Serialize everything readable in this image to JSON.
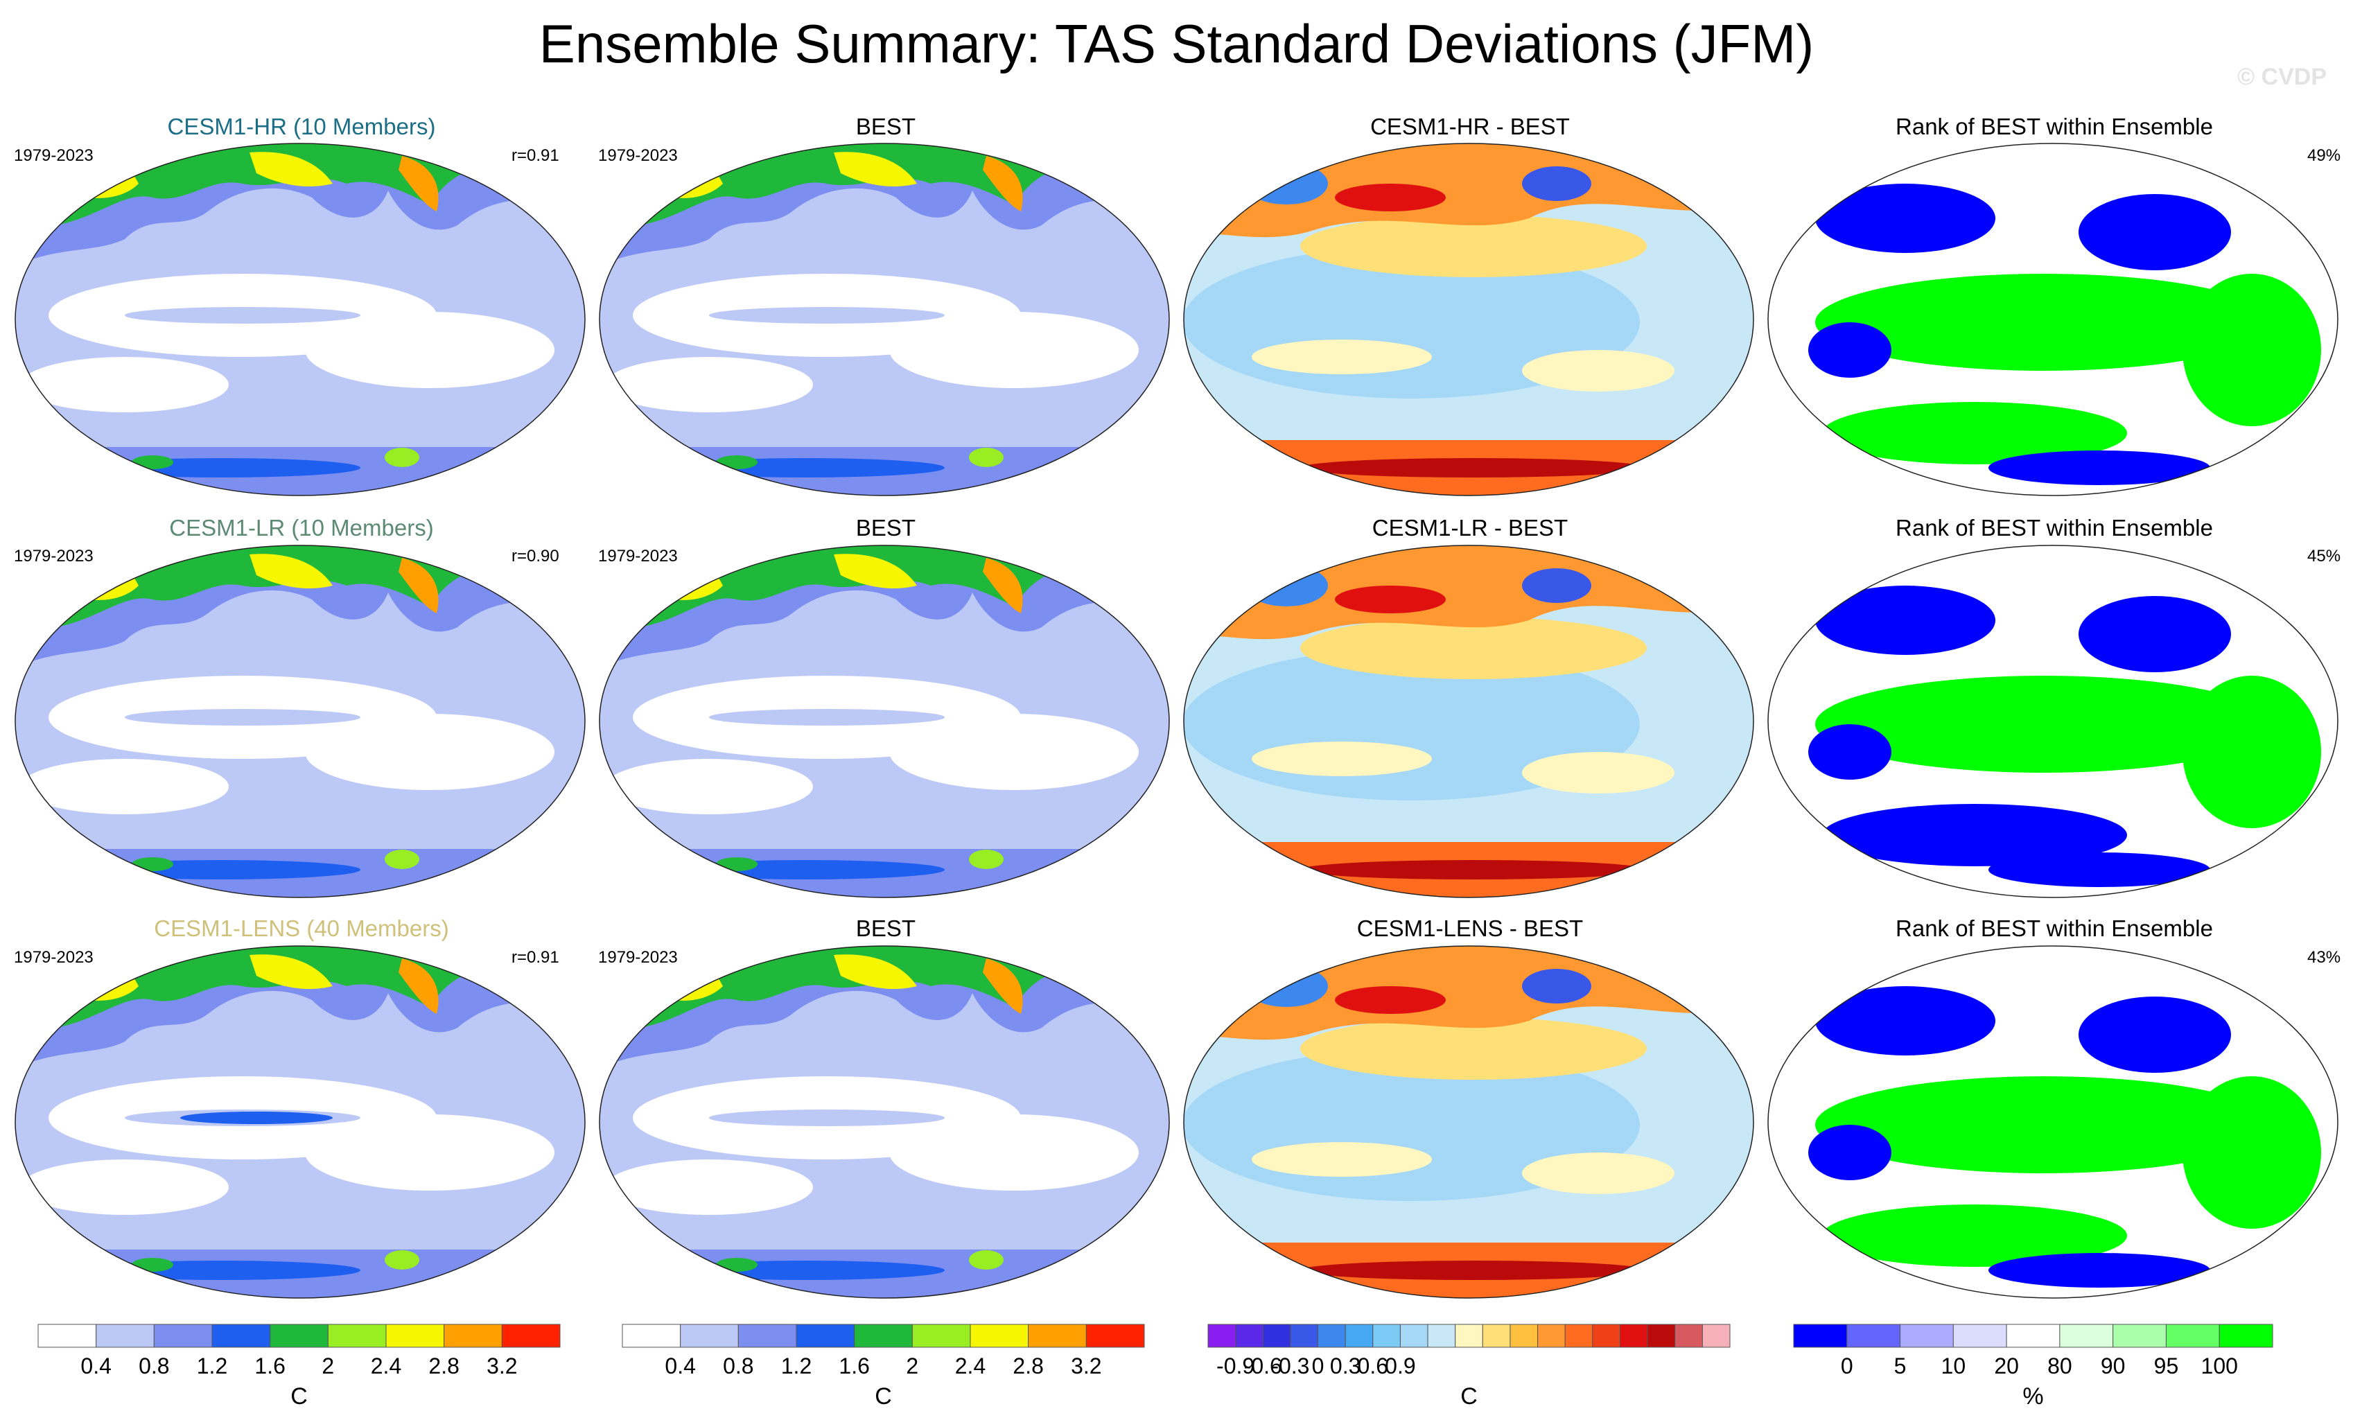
{
  "title": "Ensemble Summary: TAS Standard Deviations (JFM)",
  "watermark": "© CVDP",
  "rows": [
    {
      "model": {
        "title": "CESM1-HR (10 Members)",
        "color": "#1b6e86",
        "period": "1979-2023",
        "r": "r=0.91"
      },
      "obs": {
        "title": "BEST",
        "period": "1979-2023"
      },
      "diff": {
        "title": "CESM1-HR - BEST"
      },
      "rank": {
        "title": "Rank of BEST within Ensemble",
        "percent": "49%"
      }
    },
    {
      "model": {
        "title": "CESM1-LR (10 Members)",
        "color": "#5c8a73",
        "period": "1979-2023",
        "r": "r=0.90"
      },
      "obs": {
        "title": "BEST",
        "period": "1979-2023"
      },
      "diff": {
        "title": "CESM1-LR - BEST"
      },
      "rank": {
        "title": "Rank of BEST within Ensemble",
        "percent": "45%"
      }
    },
    {
      "model": {
        "title": "CESM1-LENS (40 Members)",
        "color": "#cfc07a",
        "period": "1979-2023",
        "r": "r=0.91"
      },
      "obs": {
        "title": "BEST",
        "period": "1979-2023"
      },
      "diff": {
        "title": "CESM1-LENS - BEST"
      },
      "rank": {
        "title": "Rank of BEST within Ensemble",
        "percent": "43%"
      }
    }
  ],
  "chart_data": {
    "type": "heatmap",
    "projection": "Robinson world map, Pacific-centred",
    "colorbars": [
      {
        "unit": "C",
        "ticks": [
          "0.4",
          "0.8",
          "1.2",
          "1.6",
          "2",
          "2.4",
          "2.8",
          "3.2"
        ],
        "colors": [
          "#ffffff",
          "#bcc8f6",
          "#7c8ef0",
          "#1f5ff0",
          "#20b83a",
          "#98ee22",
          "#f6f600",
          "#ffa000",
          "#ff2200"
        ]
      },
      {
        "unit": "C",
        "ticks": [
          "0.4",
          "0.8",
          "1.2",
          "1.6",
          "2",
          "2.4",
          "2.8",
          "3.2"
        ],
        "colors": [
          "#ffffff",
          "#bcc8f6",
          "#7c8ef0",
          "#1f5ff0",
          "#20b83a",
          "#98ee22",
          "#f6f600",
          "#ffa000",
          "#ff2200"
        ]
      },
      {
        "unit": "C",
        "ticks": [
          "-0.9",
          "-0.6",
          "-0.3",
          "0",
          "0.3",
          "0.6",
          "0.9"
        ],
        "colors": [
          "#8a1ef0",
          "#5a28e8",
          "#3030e0",
          "#3a58e8",
          "#3c88ee",
          "#46a8f2",
          "#7ccaf6",
          "#a4d8f6",
          "#c8e8f8",
          "#fff6c0",
          "#ffe078",
          "#ffc040",
          "#ff9830",
          "#ff6c20",
          "#f04018",
          "#e01010",
          "#bb0a0a",
          "#d85a60",
          "#f5b0b8"
        ]
      },
      {
        "unit": "%",
        "ticks": [
          "0",
          "5",
          "10",
          "20",
          "80",
          "90",
          "95",
          "100"
        ],
        "colors": [
          "#0000ff",
          "#6464ff",
          "#aaaaff",
          "#dcdcff",
          "#ffffff",
          "#dcffdc",
          "#aaffaa",
          "#64ff64",
          "#00ff00"
        ]
      }
    ]
  }
}
